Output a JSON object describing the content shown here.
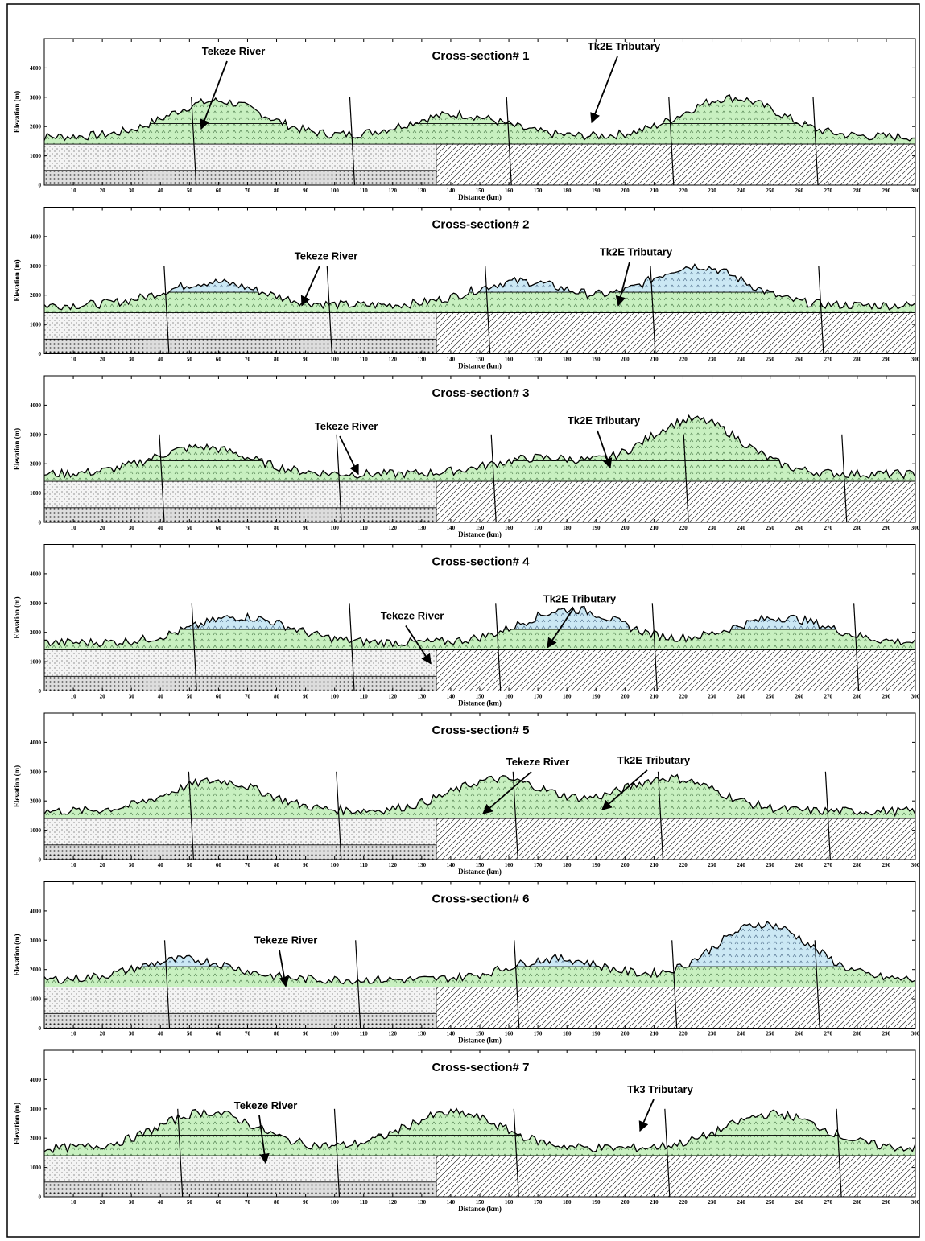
{
  "axes": {
    "x_label": "Distance (km)",
    "y_label": "Elevation (m)",
    "xlim": [
      0,
      300
    ],
    "ylim": [
      0,
      5000
    ],
    "xticks": [
      10,
      20,
      30,
      40,
      50,
      60,
      70,
      80,
      90,
      100,
      110,
      120,
      130,
      140,
      150,
      160,
      170,
      180,
      190,
      200,
      210,
      220,
      230,
      240,
      250,
      260,
      270,
      280,
      290,
      300
    ],
    "yticks": [
      0,
      1000,
      2000,
      3000,
      4000
    ]
  },
  "panels": [
    {
      "title": "Cross-section# 1",
      "annotations": [
        "Tekeze River",
        "Tk2E Tributary"
      ]
    },
    {
      "title": "Cross-section# 2",
      "annotations": [
        "Tekeze River",
        "Tk2E Tributary"
      ]
    },
    {
      "title": "Cross-section# 3",
      "annotations": [
        "Tekeze River",
        "Tk2E Tributary"
      ]
    },
    {
      "title": "Cross-section# 4",
      "annotations": [
        "Tekeze River",
        "Tk2E Tributary"
      ]
    },
    {
      "title": "Cross-section# 5",
      "annotations": [
        "Tekeze River",
        "Tk2E Tributary"
      ]
    },
    {
      "title": "Cross-section# 6",
      "annotations": [
        "Tekeze River"
      ]
    },
    {
      "title": "Cross-section# 7",
      "annotations": [
        "Tekeze River",
        "Tk3 Tributary"
      ]
    }
  ]
}
